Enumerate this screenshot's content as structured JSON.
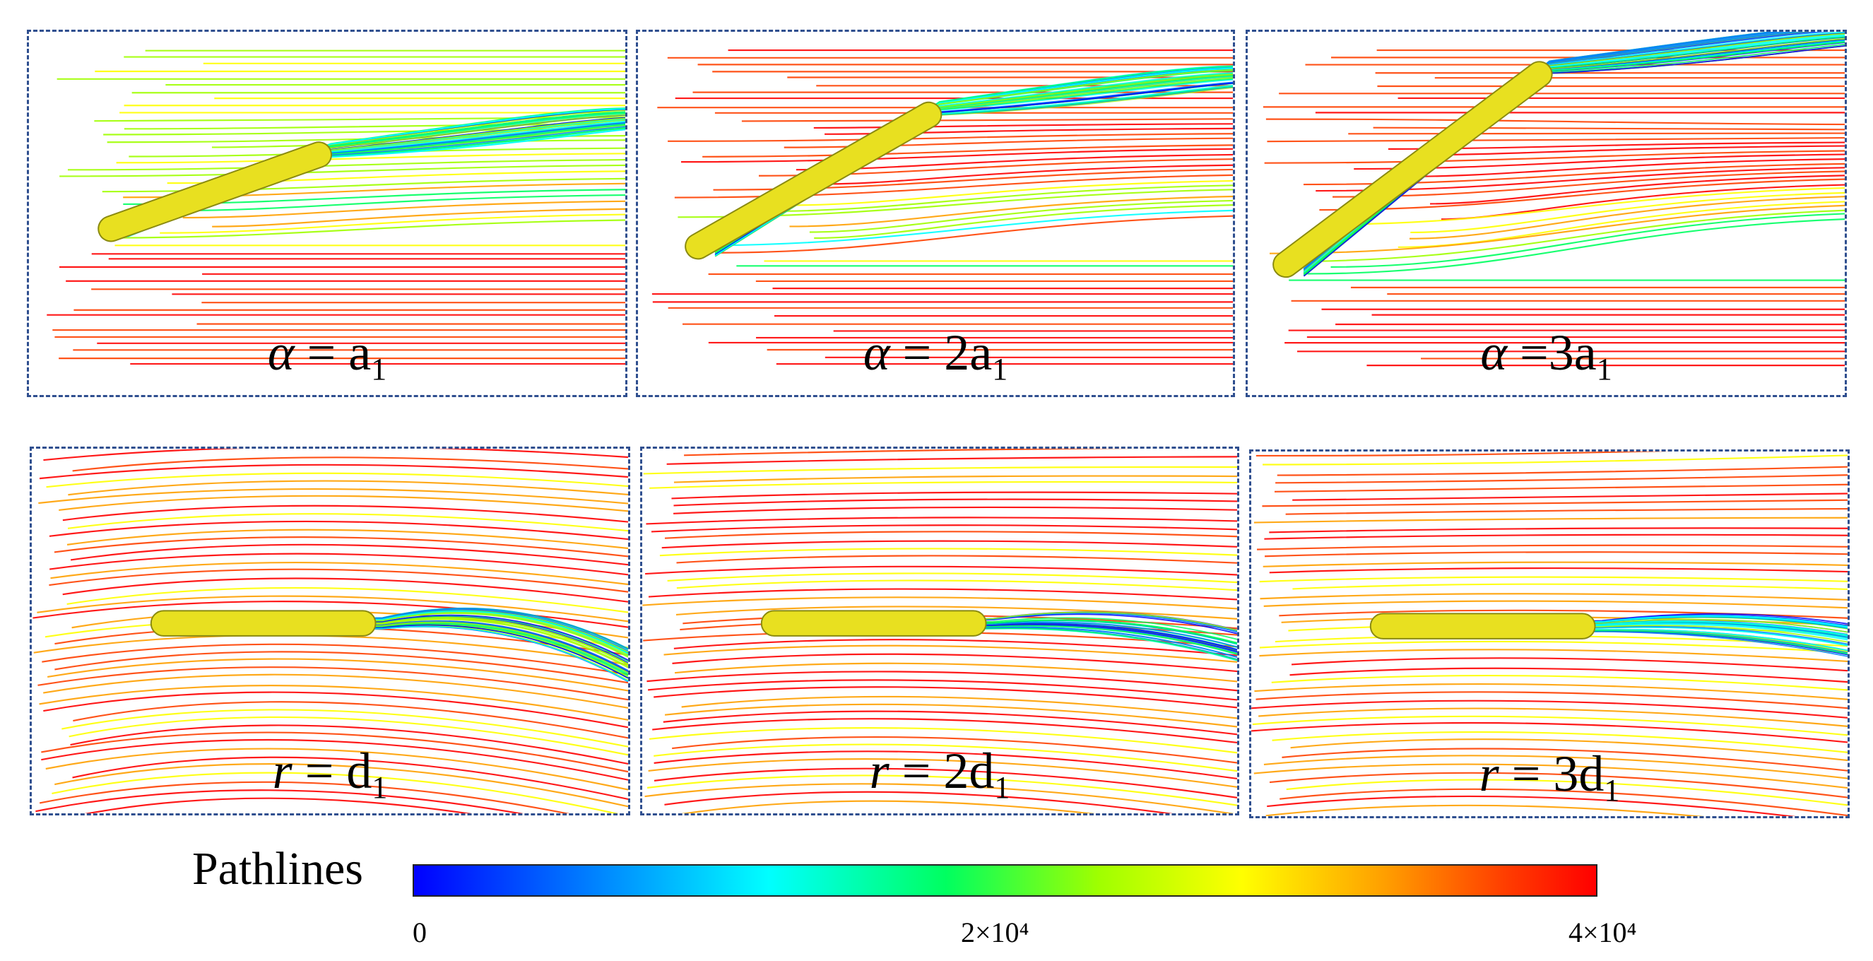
{
  "panels": [
    {
      "id": "p1",
      "symbol": "α",
      "operator": " = ",
      "coef": "",
      "base": "a",
      "sub": "1",
      "case": "straight",
      "angle": 1,
      "offset": 0
    },
    {
      "id": "p2",
      "symbol": "α",
      "operator": " = ",
      "coef": "2",
      "base": "a",
      "sub": "1",
      "case": "straight",
      "angle": 2,
      "offset": 0
    },
    {
      "id": "p3",
      "symbol": "α",
      "operator": " =",
      "coef": "3",
      "base": "a",
      "sub": "1",
      "case": "straight",
      "angle": 3,
      "offset": 0
    },
    {
      "id": "p4",
      "symbol": "r",
      "operator": " = ",
      "coef": "",
      "base": "d",
      "sub": "1",
      "case": "curved",
      "angle": 0,
      "offset": 1
    },
    {
      "id": "p5",
      "symbol": "r",
      "operator": " = ",
      "coef": "2",
      "base": "d",
      "sub": "1",
      "case": "curved",
      "angle": 0,
      "offset": 2
    },
    {
      "id": "p6",
      "symbol": "r",
      "operator": " = ",
      "coef": "3",
      "base": "d",
      "sub": "1",
      "case": "curved",
      "angle": 0,
      "offset": 3
    }
  ],
  "legend": {
    "title": "Pathlines",
    "tick_min": "0",
    "tick_mid": "2×10⁴",
    "tick_max": "4×10⁴",
    "range": [
      0,
      40000
    ],
    "colors": [
      "#0000ff",
      "#0080ff",
      "#00ffff",
      "#00ff60",
      "#a0ff00",
      "#ffff00",
      "#ffa000",
      "#ff4000",
      "#ff0000"
    ]
  }
}
